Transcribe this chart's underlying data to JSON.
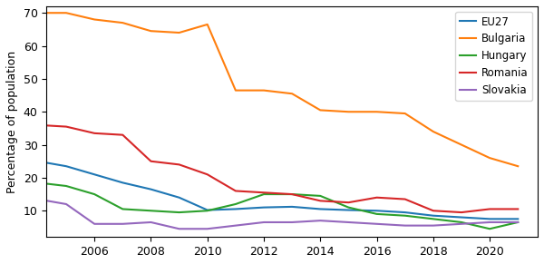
{
  "years": [
    2004,
    2005,
    2006,
    2007,
    2008,
    2009,
    2010,
    2011,
    2012,
    2013,
    2014,
    2015,
    2016,
    2017,
    2018,
    2019,
    2020,
    2021
  ],
  "series": {
    "EU27": {
      "values": [
        25.0,
        23.5,
        21.0,
        18.5,
        16.5,
        14.0,
        10.2,
        10.5,
        11.0,
        11.2,
        10.5,
        10.2,
        10.0,
        9.5,
        8.5,
        8.0,
        7.5,
        7.5
      ],
      "color": "#1f77b4"
    },
    "Bulgaria": {
      "values": [
        70.0,
        70.0,
        68.0,
        67.0,
        64.5,
        64.0,
        66.5,
        46.5,
        46.5,
        45.5,
        40.5,
        40.0,
        40.0,
        39.5,
        34.0,
        30.0,
        26.0,
        23.5
      ],
      "color": "#ff7f0e"
    },
    "Hungary": {
      "values": [
        18.5,
        17.5,
        15.0,
        10.5,
        10.0,
        9.5,
        10.0,
        12.0,
        15.0,
        15.0,
        14.5,
        11.0,
        9.0,
        8.5,
        7.5,
        6.5,
        4.5,
        6.5
      ],
      "color": "#2ca02c"
    },
    "Romania": {
      "values": [
        36.0,
        35.5,
        33.5,
        33.0,
        25.0,
        24.0,
        21.0,
        16.0,
        15.5,
        15.0,
        13.0,
        12.5,
        14.0,
        13.5,
        10.0,
        9.5,
        10.5,
        10.5
      ],
      "color": "#d62728"
    },
    "Slovakia": {
      "values": [
        13.5,
        12.0,
        6.0,
        6.0,
        6.5,
        4.5,
        4.5,
        5.5,
        6.5,
        6.5,
        7.0,
        6.5,
        6.0,
        5.5,
        5.5,
        6.0,
        6.5,
        6.5
      ],
      "color": "#9467bd"
    }
  },
  "ylabel": "Percentage of population",
  "ylim": [
    2,
    72
  ],
  "xlim": [
    2004.3,
    2021.7
  ],
  "xticks": [
    2006,
    2008,
    2010,
    2012,
    2014,
    2016,
    2018,
    2020
  ],
  "legend_order": [
    "EU27",
    "Bulgaria",
    "Hungary",
    "Romania",
    "Slovakia"
  ],
  "figsize": [
    6.0,
    2.91
  ],
  "dpi": 100
}
